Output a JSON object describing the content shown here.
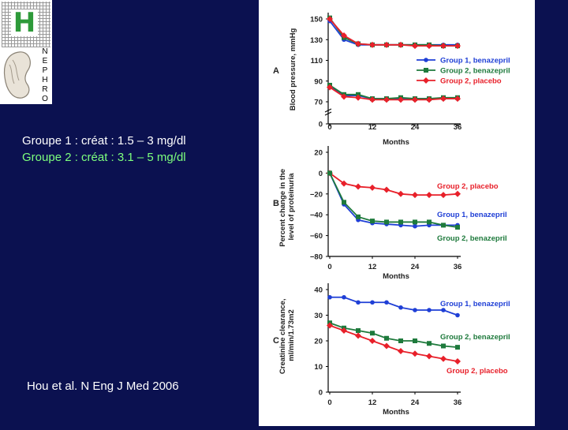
{
  "logo": {
    "letter": "H",
    "vertical": [
      "N",
      "E",
      "P",
      "H",
      "R",
      "O"
    ]
  },
  "text": {
    "line1": "Groupe 1 : créat : 1.5 – 3 mg/dl",
    "line2": "Groupe 2 : créat : 3.1 – 5 mg/dl",
    "citation": "Hou et al. N Eng J Med 2006"
  },
  "colors": {
    "group1": "#1f3fd6",
    "group2_benazepril": "#1e7a3c",
    "placebo": "#e8202a",
    "background": "#0b1150"
  },
  "chart_data": [
    {
      "panel": "A",
      "type": "line",
      "title": "",
      "xlabel": "Months",
      "ylabel": "Blood pressure, mmHg",
      "x_ticks": [
        0,
        12,
        24,
        36
      ],
      "y_ticks": [
        0,
        70,
        90,
        110,
        130,
        150
      ],
      "ylim": [
        0,
        155
      ],
      "legend": [
        "Group 1, benazepril",
        "Group 2, benazepril",
        "Group 2, placebo"
      ],
      "series": [
        {
          "name": "Group 1, benazepril (systolic)",
          "color": "#1f3fd6",
          "marker": "circle",
          "x": [
            0,
            4,
            8,
            12,
            16,
            20,
            24,
            28,
            32,
            36
          ],
          "values": [
            148,
            130,
            125,
            125,
            125,
            125,
            125,
            125,
            125,
            125
          ]
        },
        {
          "name": "Group 2, benazepril (systolic)",
          "color": "#1e7a3c",
          "marker": "square",
          "x": [
            0,
            4,
            8,
            12,
            16,
            20,
            24,
            28,
            32,
            36
          ],
          "values": [
            151,
            132,
            126,
            125,
            125,
            125,
            125,
            125,
            124,
            124
          ]
        },
        {
          "name": "Group 2, placebo (systolic)",
          "color": "#e8202a",
          "marker": "diamond",
          "x": [
            0,
            4,
            8,
            12,
            16,
            20,
            24,
            28,
            32,
            36
          ],
          "values": [
            150,
            134,
            126,
            125,
            125,
            125,
            124,
            124,
            124,
            124
          ]
        },
        {
          "name": "Group 1, benazepril (diastolic)",
          "color": "#1f3fd6",
          "marker": "circle",
          "x": [
            0,
            4,
            8,
            12,
            16,
            20,
            24,
            28,
            32,
            36
          ],
          "values": [
            85,
            76,
            76,
            73,
            73,
            73,
            73,
            73,
            73,
            73
          ]
        },
        {
          "name": "Group 2, benazepril (diastolic)",
          "color": "#1e7a3c",
          "marker": "square",
          "x": [
            0,
            4,
            8,
            12,
            16,
            20,
            24,
            28,
            32,
            36
          ],
          "values": [
            86,
            77,
            77,
            73,
            73,
            74,
            73,
            73,
            74,
            74
          ]
        },
        {
          "name": "Group 2, placebo (diastolic)",
          "color": "#e8202a",
          "marker": "diamond",
          "x": [
            0,
            4,
            8,
            12,
            16,
            20,
            24,
            28,
            32,
            36
          ],
          "values": [
            84,
            75,
            74,
            72,
            72,
            72,
            72,
            72,
            73,
            73
          ]
        }
      ]
    },
    {
      "panel": "B",
      "type": "line",
      "title": "",
      "xlabel": "Months",
      "ylabel": "Percent change in the level of proteinuria",
      "x_ticks": [
        0,
        12,
        24,
        36
      ],
      "y_ticks": [
        20,
        0,
        -20,
        -40,
        -60,
        -80
      ],
      "ylim": [
        -80,
        20
      ],
      "series": [
        {
          "name": "Group 2, placebo",
          "color": "#e8202a",
          "marker": "diamond",
          "x": [
            0,
            4,
            8,
            12,
            16,
            20,
            24,
            28,
            32,
            36
          ],
          "values": [
            0,
            -10,
            -13,
            -14,
            -16,
            -20,
            -21,
            -21,
            -21,
            -20
          ]
        },
        {
          "name": "Group 1, benazepril",
          "color": "#1f3fd6",
          "marker": "circle",
          "x": [
            0,
            4,
            8,
            12,
            16,
            20,
            24,
            28,
            32,
            36
          ],
          "values": [
            0,
            -30,
            -45,
            -48,
            -49,
            -50,
            -51,
            -50,
            -50,
            -50
          ]
        },
        {
          "name": "Group 2, benazepril",
          "color": "#1e7a3c",
          "marker": "square",
          "x": [
            0,
            4,
            8,
            12,
            16,
            20,
            24,
            28,
            32,
            36
          ],
          "values": [
            0,
            -28,
            -42,
            -46,
            -47,
            -47,
            -47,
            -47,
            -50,
            -52
          ]
        }
      ]
    },
    {
      "panel": "C",
      "type": "line",
      "title": "",
      "xlabel": "Months",
      "ylabel": "Creatinine clearance, ml/min/1.73m2",
      "x_ticks": [
        0,
        12,
        24,
        36
      ],
      "y_ticks": [
        0,
        10,
        20,
        30,
        40
      ],
      "ylim": [
        0,
        40
      ],
      "series": [
        {
          "name": "Group 1, benazepril",
          "color": "#1f3fd6",
          "marker": "circle",
          "x": [
            0,
            4,
            8,
            12,
            16,
            20,
            24,
            28,
            32,
            36
          ],
          "values": [
            37,
            37,
            35,
            35,
            35,
            33,
            32,
            32,
            32,
            30
          ]
        },
        {
          "name": "Group 2, benazepril",
          "color": "#1e7a3c",
          "marker": "square",
          "x": [
            0,
            4,
            8,
            12,
            16,
            20,
            24,
            28,
            32,
            36
          ],
          "values": [
            27,
            25,
            24,
            23,
            21,
            20,
            20,
            19,
            18,
            17.5
          ]
        },
        {
          "name": "Group 2, placebo",
          "color": "#e8202a",
          "marker": "diamond",
          "x": [
            0,
            4,
            8,
            12,
            16,
            20,
            24,
            28,
            32,
            36
          ],
          "values": [
            26,
            24,
            22,
            20,
            18,
            16,
            15,
            14,
            13,
            12
          ]
        }
      ]
    }
  ]
}
